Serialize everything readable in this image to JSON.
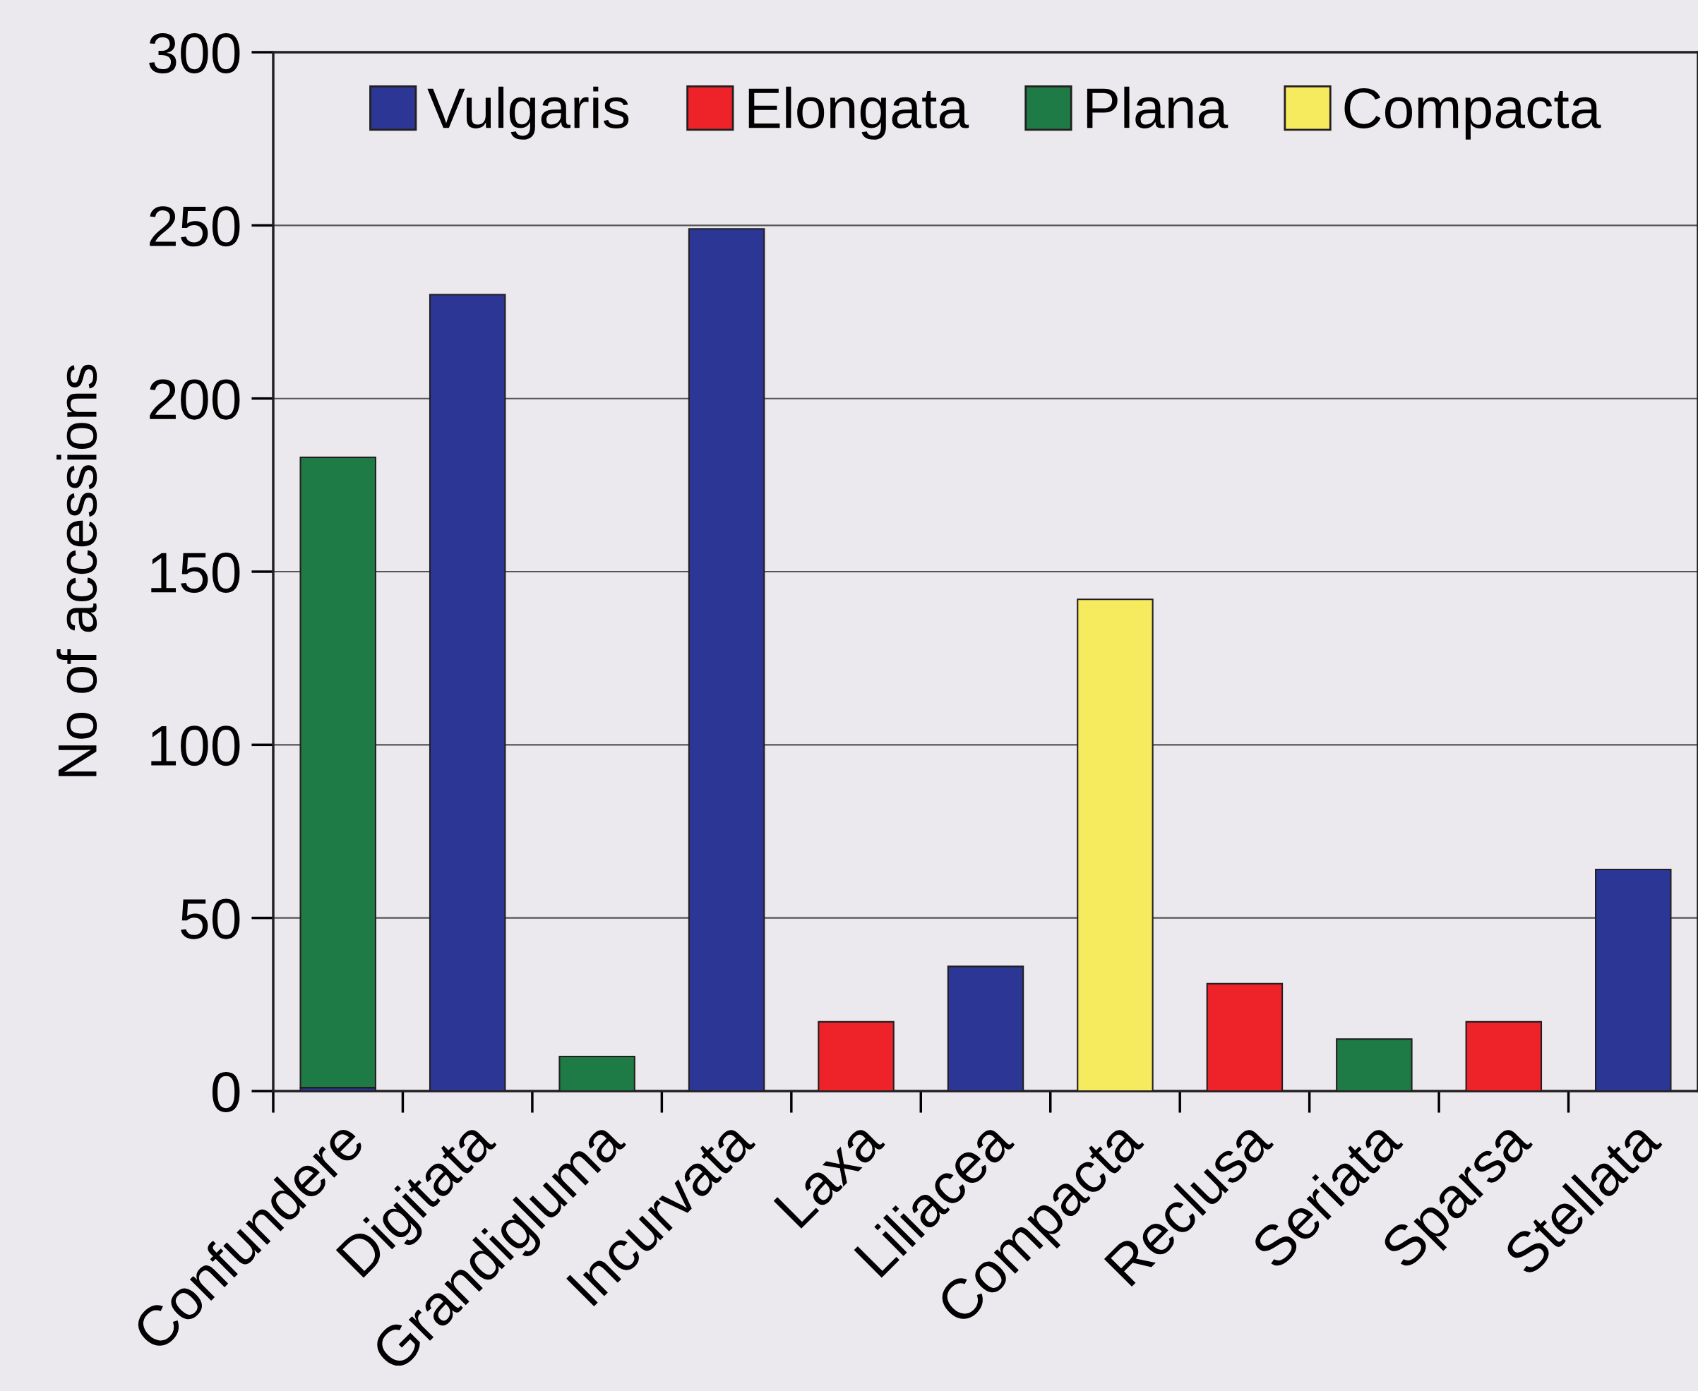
{
  "chart_data": {
    "type": "bar",
    "ylabel": "No of accessions",
    "categories": [
      "Confundere",
      "Digitata",
      "Grandigluma",
      "Incurvata",
      "Laxa",
      "Liliacea",
      "Compacta",
      "Reclusa",
      "Seriata",
      "Sparsa",
      "Stellata"
    ],
    "stacked": true,
    "series": [
      {
        "name": "Vulgaris",
        "color": "#2b3695",
        "values": [
          1,
          230,
          null,
          249,
          null,
          36,
          null,
          null,
          null,
          null,
          64
        ]
      },
      {
        "name": "Elongata",
        "color": "#ee2229",
        "values": [
          null,
          null,
          null,
          null,
          20,
          null,
          null,
          31,
          null,
          20,
          null
        ]
      },
      {
        "name": "Plana",
        "color": "#1f7b46",
        "values": [
          182,
          null,
          10,
          null,
          null,
          null,
          null,
          null,
          15,
          null,
          null
        ]
      },
      {
        "name": "Compacta",
        "color": "#f6ea5f",
        "values": [
          null,
          null,
          null,
          null,
          null,
          null,
          142,
          null,
          null,
          null,
          null
        ]
      }
    ],
    "ylim": [
      0,
      300
    ],
    "yticks": [
      0,
      50,
      100,
      150,
      200,
      250,
      300
    ],
    "grid": "y",
    "legend": "top"
  }
}
